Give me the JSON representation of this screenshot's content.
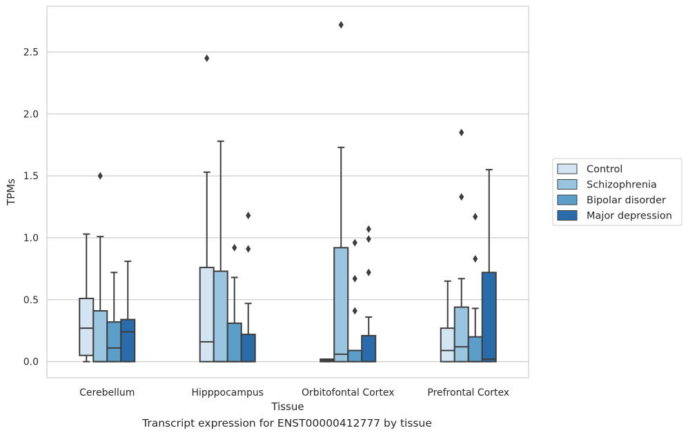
{
  "caption": "Transcript expression for ENST00000412777 by tissue",
  "chart_data": {
    "type": "box",
    "xlabel": "Tissue",
    "ylabel": "TPMs",
    "ylim": [
      -0.13,
      2.87
    ],
    "yticks": [
      0.0,
      0.5,
      1.0,
      1.5,
      2.0,
      2.5
    ],
    "ytick_labels": [
      "0.0",
      "0.5",
      "1.0",
      "1.5",
      "2.0",
      "2.5"
    ],
    "grid": "horizontal",
    "legend_position": "right",
    "categories": [
      "Cerebellum",
      "Hipppocampus",
      "Orbitofontal Cortex",
      "Prefrontal Cortex"
    ],
    "series": [
      {
        "name": "Control",
        "color": "#d3e4f3",
        "boxes": [
          {
            "whislo": 0.0,
            "q1": 0.05,
            "med": 0.27,
            "q3": 0.51,
            "whishi": 1.03,
            "fliers": []
          },
          {
            "whislo": 0.0,
            "q1": 0.0,
            "med": 0.16,
            "q3": 0.76,
            "whishi": 1.53,
            "fliers": [
              2.45
            ]
          },
          {
            "whislo": 0.0,
            "q1": 0.0,
            "med": 0.01,
            "q3": 0.02,
            "whishi": 0.02,
            "fliers": []
          },
          {
            "whislo": 0.0,
            "q1": 0.0,
            "med": 0.09,
            "q3": 0.27,
            "whishi": 0.65,
            "fliers": []
          }
        ]
      },
      {
        "name": "Schizophrenia",
        "color": "#9ac5e0",
        "boxes": [
          {
            "whislo": 0.0,
            "q1": 0.0,
            "med": 0.0,
            "q3": 0.41,
            "whishi": 1.01,
            "fliers": [
              1.5
            ]
          },
          {
            "whislo": 0.0,
            "q1": 0.0,
            "med": 0.0,
            "q3": 0.73,
            "whishi": 1.78,
            "fliers": []
          },
          {
            "whislo": 0.0,
            "q1": 0.0,
            "med": 0.06,
            "q3": 0.92,
            "whishi": 1.73,
            "fliers": [
              2.72
            ]
          },
          {
            "whislo": 0.0,
            "q1": 0.0,
            "med": 0.12,
            "q3": 0.44,
            "whishi": 0.67,
            "fliers": [
              1.85,
              1.33
            ]
          }
        ]
      },
      {
        "name": "Bipolar disorder",
        "color": "#5b9ec9",
        "boxes": [
          {
            "whislo": 0.0,
            "q1": 0.0,
            "med": 0.11,
            "q3": 0.32,
            "whishi": 0.72,
            "fliers": []
          },
          {
            "whislo": 0.0,
            "q1": 0.0,
            "med": 0.0,
            "q3": 0.31,
            "whishi": 0.68,
            "fliers": [
              0.92
            ]
          },
          {
            "whislo": 0.0,
            "q1": 0.0,
            "med": 0.09,
            "q3": 0.09,
            "whishi": 0.09,
            "fliers": [
              0.96,
              0.67,
              0.41
            ]
          },
          {
            "whislo": 0.0,
            "q1": 0.0,
            "med": 0.0,
            "q3": 0.2,
            "whishi": 0.43,
            "fliers": [
              1.17,
              0.83
            ]
          }
        ]
      },
      {
        "name": "Major depression",
        "color": "#2a6bac",
        "boxes": [
          {
            "whislo": 0.0,
            "q1": 0.0,
            "med": 0.24,
            "q3": 0.34,
            "whishi": 0.81,
            "fliers": []
          },
          {
            "whislo": 0.0,
            "q1": 0.0,
            "med": 0.0,
            "q3": 0.22,
            "whishi": 0.47,
            "fliers": [
              1.18,
              0.91
            ]
          },
          {
            "whislo": 0.0,
            "q1": 0.0,
            "med": 0.0,
            "q3": 0.21,
            "whishi": 0.36,
            "fliers": [
              1.07,
              0.99,
              0.72
            ]
          },
          {
            "whislo": 0.0,
            "q1": 0.0,
            "med": 0.02,
            "q3": 0.72,
            "whishi": 1.55,
            "fliers": []
          }
        ]
      }
    ]
  }
}
